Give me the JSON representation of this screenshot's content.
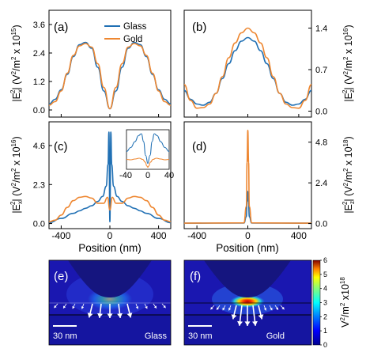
{
  "legend": {
    "glass": "Glass",
    "gold": "Gold"
  },
  "colors": {
    "glass": "#2070b4",
    "gold": "#ee8731"
  },
  "panels": {
    "a": {
      "label": "(a)",
      "ylabel_main": "|E",
      "ylabel_sub": "x",
      "ylabel_sup": "2",
      "ylabel_unit": "| (V",
      "ylabel_unit_sup": "2",
      "ylabel_unit2": "/m",
      "ylabel_unit_sup2": "2",
      "ylabel_unit3": " x 10",
      "ylabel_exp": "15",
      "ylabel_close": ")",
      "yticks": [
        "0.0",
        "1.2",
        "2.4",
        "3.6"
      ]
    },
    "b": {
      "label": "(b)",
      "ylabel_main": "|E",
      "ylabel_sub": "z",
      "ylabel_sup": "2",
      "ylabel_unit": "| (V",
      "ylabel_unit_sup": "2",
      "ylabel_unit2": "/m",
      "ylabel_unit_sup2": "2",
      "ylabel_unit3": " x 10",
      "ylabel_exp": "16",
      "ylabel_close": ")",
      "yticks": [
        "0.0",
        "0.7",
        "1.4"
      ]
    },
    "c": {
      "label": "(c)",
      "ylabel_main": "|E",
      "ylabel_sub": "x",
      "ylabel_sup": "2",
      "ylabel_unit": "| (V",
      "ylabel_unit_sup": "2",
      "ylabel_unit2": "/m",
      "ylabel_unit_sup2": "2",
      "ylabel_unit3": " x 10",
      "ylabel_exp": "16",
      "ylabel_close": ")",
      "yticks": [
        "0.0",
        "2.3",
        "4.6"
      ],
      "inset_xticks": [
        "-40",
        "0",
        "40"
      ]
    },
    "d": {
      "label": "(d)",
      "ylabel_main": "|E",
      "ylabel_sub": "z",
      "ylabel_sup": "2",
      "ylabel_unit": "| (V",
      "ylabel_unit_sup": "2",
      "ylabel_unit2": "/m",
      "ylabel_unit_sup2": "2",
      "ylabel_unit3": " x 10",
      "ylabel_exp": "18",
      "ylabel_close": ")",
      "yticks": [
        "0.0",
        "2.4",
        "4.8"
      ]
    },
    "e": {
      "label": "(e)",
      "scalebar": "30 nm",
      "material": "Glass"
    },
    "f": {
      "label": "(f)",
      "scalebar": "30 nm",
      "material": "Gold"
    }
  },
  "xaxis": {
    "label": "Position (nm)",
    "ticks": [
      "-400",
      "0",
      "400"
    ]
  },
  "colorbar": {
    "ticks": [
      "0",
      "1",
      "2",
      "3",
      "4",
      "5",
      "6"
    ],
    "label_main": "V",
    "label_sup": "2",
    "label_mid": "/m",
    "label_sup2": "2",
    "label_tail": " x10",
    "label_exp": "18",
    "min": 0,
    "max": 6
  },
  "chart_data": [
    {
      "type": "line",
      "panel": "a",
      "xlim": [
        -500,
        500
      ],
      "ylim": [
        -0.3,
        4.2
      ],
      "series": [
        {
          "name": "Glass",
          "x": [
            -500,
            -450,
            -400,
            -350,
            -300,
            -250,
            -200,
            -150,
            -100,
            -50,
            0,
            50,
            100,
            150,
            200,
            250,
            300,
            350,
            400,
            450,
            500
          ],
          "y": [
            0.25,
            0.45,
            0.85,
            1.5,
            2.25,
            2.75,
            2.85,
            2.6,
            1.8,
            0.8,
            0.05,
            0.8,
            1.8,
            2.6,
            2.85,
            2.75,
            2.25,
            1.5,
            0.85,
            0.45,
            0.25
          ]
        },
        {
          "name": "Gold",
          "x": [
            -500,
            -450,
            -400,
            -350,
            -300,
            -250,
            -200,
            -150,
            -100,
            -50,
            0,
            50,
            100,
            150,
            200,
            250,
            300,
            350,
            400,
            450,
            500
          ],
          "y": [
            0.2,
            0.35,
            0.8,
            1.55,
            2.3,
            2.7,
            2.8,
            2.65,
            1.95,
            0.95,
            0.05,
            0.95,
            1.95,
            2.65,
            2.8,
            2.7,
            2.3,
            1.55,
            0.8,
            0.35,
            0.2
          ]
        }
      ]
    },
    {
      "type": "line",
      "panel": "b",
      "xlim": [
        -500,
        500
      ],
      "ylim": [
        -0.1,
        1.7
      ],
      "series": [
        {
          "name": "Glass",
          "x": [
            -500,
            -450,
            -400,
            -350,
            -300,
            -250,
            -200,
            -150,
            -100,
            -50,
            0,
            50,
            100,
            150,
            200,
            250,
            300,
            350,
            400,
            450,
            500
          ],
          "y": [
            0.35,
            0.2,
            0.12,
            0.1,
            0.15,
            0.3,
            0.55,
            0.8,
            1.02,
            1.18,
            1.24,
            1.18,
            1.02,
            0.8,
            0.55,
            0.3,
            0.15,
            0.1,
            0.12,
            0.2,
            0.35
          ]
        },
        {
          "name": "Gold",
          "x": [
            -500,
            -450,
            -400,
            -350,
            -300,
            -250,
            -200,
            -150,
            -100,
            -50,
            0,
            50,
            100,
            150,
            200,
            250,
            300,
            350,
            400,
            450,
            500
          ],
          "y": [
            0.45,
            0.18,
            0.05,
            0.06,
            0.12,
            0.3,
            0.58,
            0.9,
            1.15,
            1.32,
            1.4,
            1.32,
            1.15,
            0.9,
            0.58,
            0.3,
            0.12,
            0.06,
            0.05,
            0.18,
            0.45
          ]
        }
      ]
    },
    {
      "type": "line",
      "panel": "c",
      "xlim": [
        -500,
        500
      ],
      "ylim": [
        -0.3,
        6.0
      ],
      "series": [
        {
          "name": "Glass",
          "x": [
            -500,
            -400,
            -300,
            -250,
            -200,
            -150,
            -100,
            -60,
            -30,
            -15,
            -8,
            0,
            8,
            15,
            30,
            60,
            100,
            150,
            200,
            250,
            300,
            400,
            500
          ],
          "y": [
            0.05,
            0.3,
            0.6,
            0.75,
            0.9,
            1.05,
            1.3,
            1.6,
            2.2,
            3.5,
            5.4,
            0.1,
            5.4,
            3.5,
            2.2,
            1.6,
            1.3,
            1.05,
            0.9,
            0.75,
            0.6,
            0.3,
            0.05
          ]
        },
        {
          "name": "Gold",
          "x": [
            -500,
            -450,
            -400,
            -350,
            -300,
            -250,
            -200,
            -150,
            -100,
            -50,
            -20,
            0,
            20,
            50,
            100,
            150,
            200,
            250,
            300,
            350,
            400,
            450,
            500
          ],
          "y": [
            0.1,
            0.2,
            0.5,
            0.95,
            1.35,
            1.55,
            1.6,
            1.5,
            1.2,
            1.2,
            1.55,
            0.8,
            1.55,
            1.2,
            1.2,
            1.5,
            1.6,
            1.55,
            1.35,
            0.95,
            0.5,
            0.2,
            0.1
          ]
        }
      ]
    },
    {
      "type": "line",
      "panel": "d",
      "xlim": [
        -500,
        500
      ],
      "ylim": [
        -0.3,
        6.0
      ],
      "series": [
        {
          "name": "Glass",
          "x": [
            -500,
            -30,
            -12,
            -5,
            0,
            5,
            12,
            30,
            500
          ],
          "y": [
            0.02,
            0.03,
            0.4,
            1.3,
            1.9,
            1.3,
            0.4,
            0.03,
            0.02
          ]
        },
        {
          "name": "Gold",
          "x": [
            -500,
            -30,
            -12,
            -6,
            0,
            6,
            12,
            30,
            500
          ],
          "y": [
            0.02,
            0.04,
            1.0,
            3.6,
            5.5,
            3.6,
            1.0,
            0.04,
            0.02
          ]
        }
      ]
    },
    {
      "type": "line",
      "panel": "c-inset",
      "xlim": [
        -50,
        50
      ],
      "ylim": [
        0,
        1
      ],
      "series": [
        {
          "name": "Glass",
          "x": [
            -50,
            -40,
            -30,
            -22,
            -15,
            -10,
            -5,
            0,
            5,
            10,
            15,
            22,
            30,
            40,
            50
          ],
          "y": [
            0.45,
            0.55,
            0.7,
            0.85,
            0.9,
            0.7,
            0.35,
            0.15,
            0.35,
            0.7,
            0.9,
            0.85,
            0.7,
            0.55,
            0.45
          ]
        },
        {
          "name": "Gold",
          "x": [
            -50,
            -40,
            -30,
            -20,
            -12,
            -6,
            -2,
            0,
            2,
            6,
            12,
            20,
            30,
            40,
            50
          ],
          "y": [
            0.25,
            0.24,
            0.26,
            0.28,
            0.25,
            0.18,
            0.08,
            0.05,
            0.08,
            0.18,
            0.25,
            0.28,
            0.26,
            0.24,
            0.25
          ]
        }
      ]
    }
  ]
}
